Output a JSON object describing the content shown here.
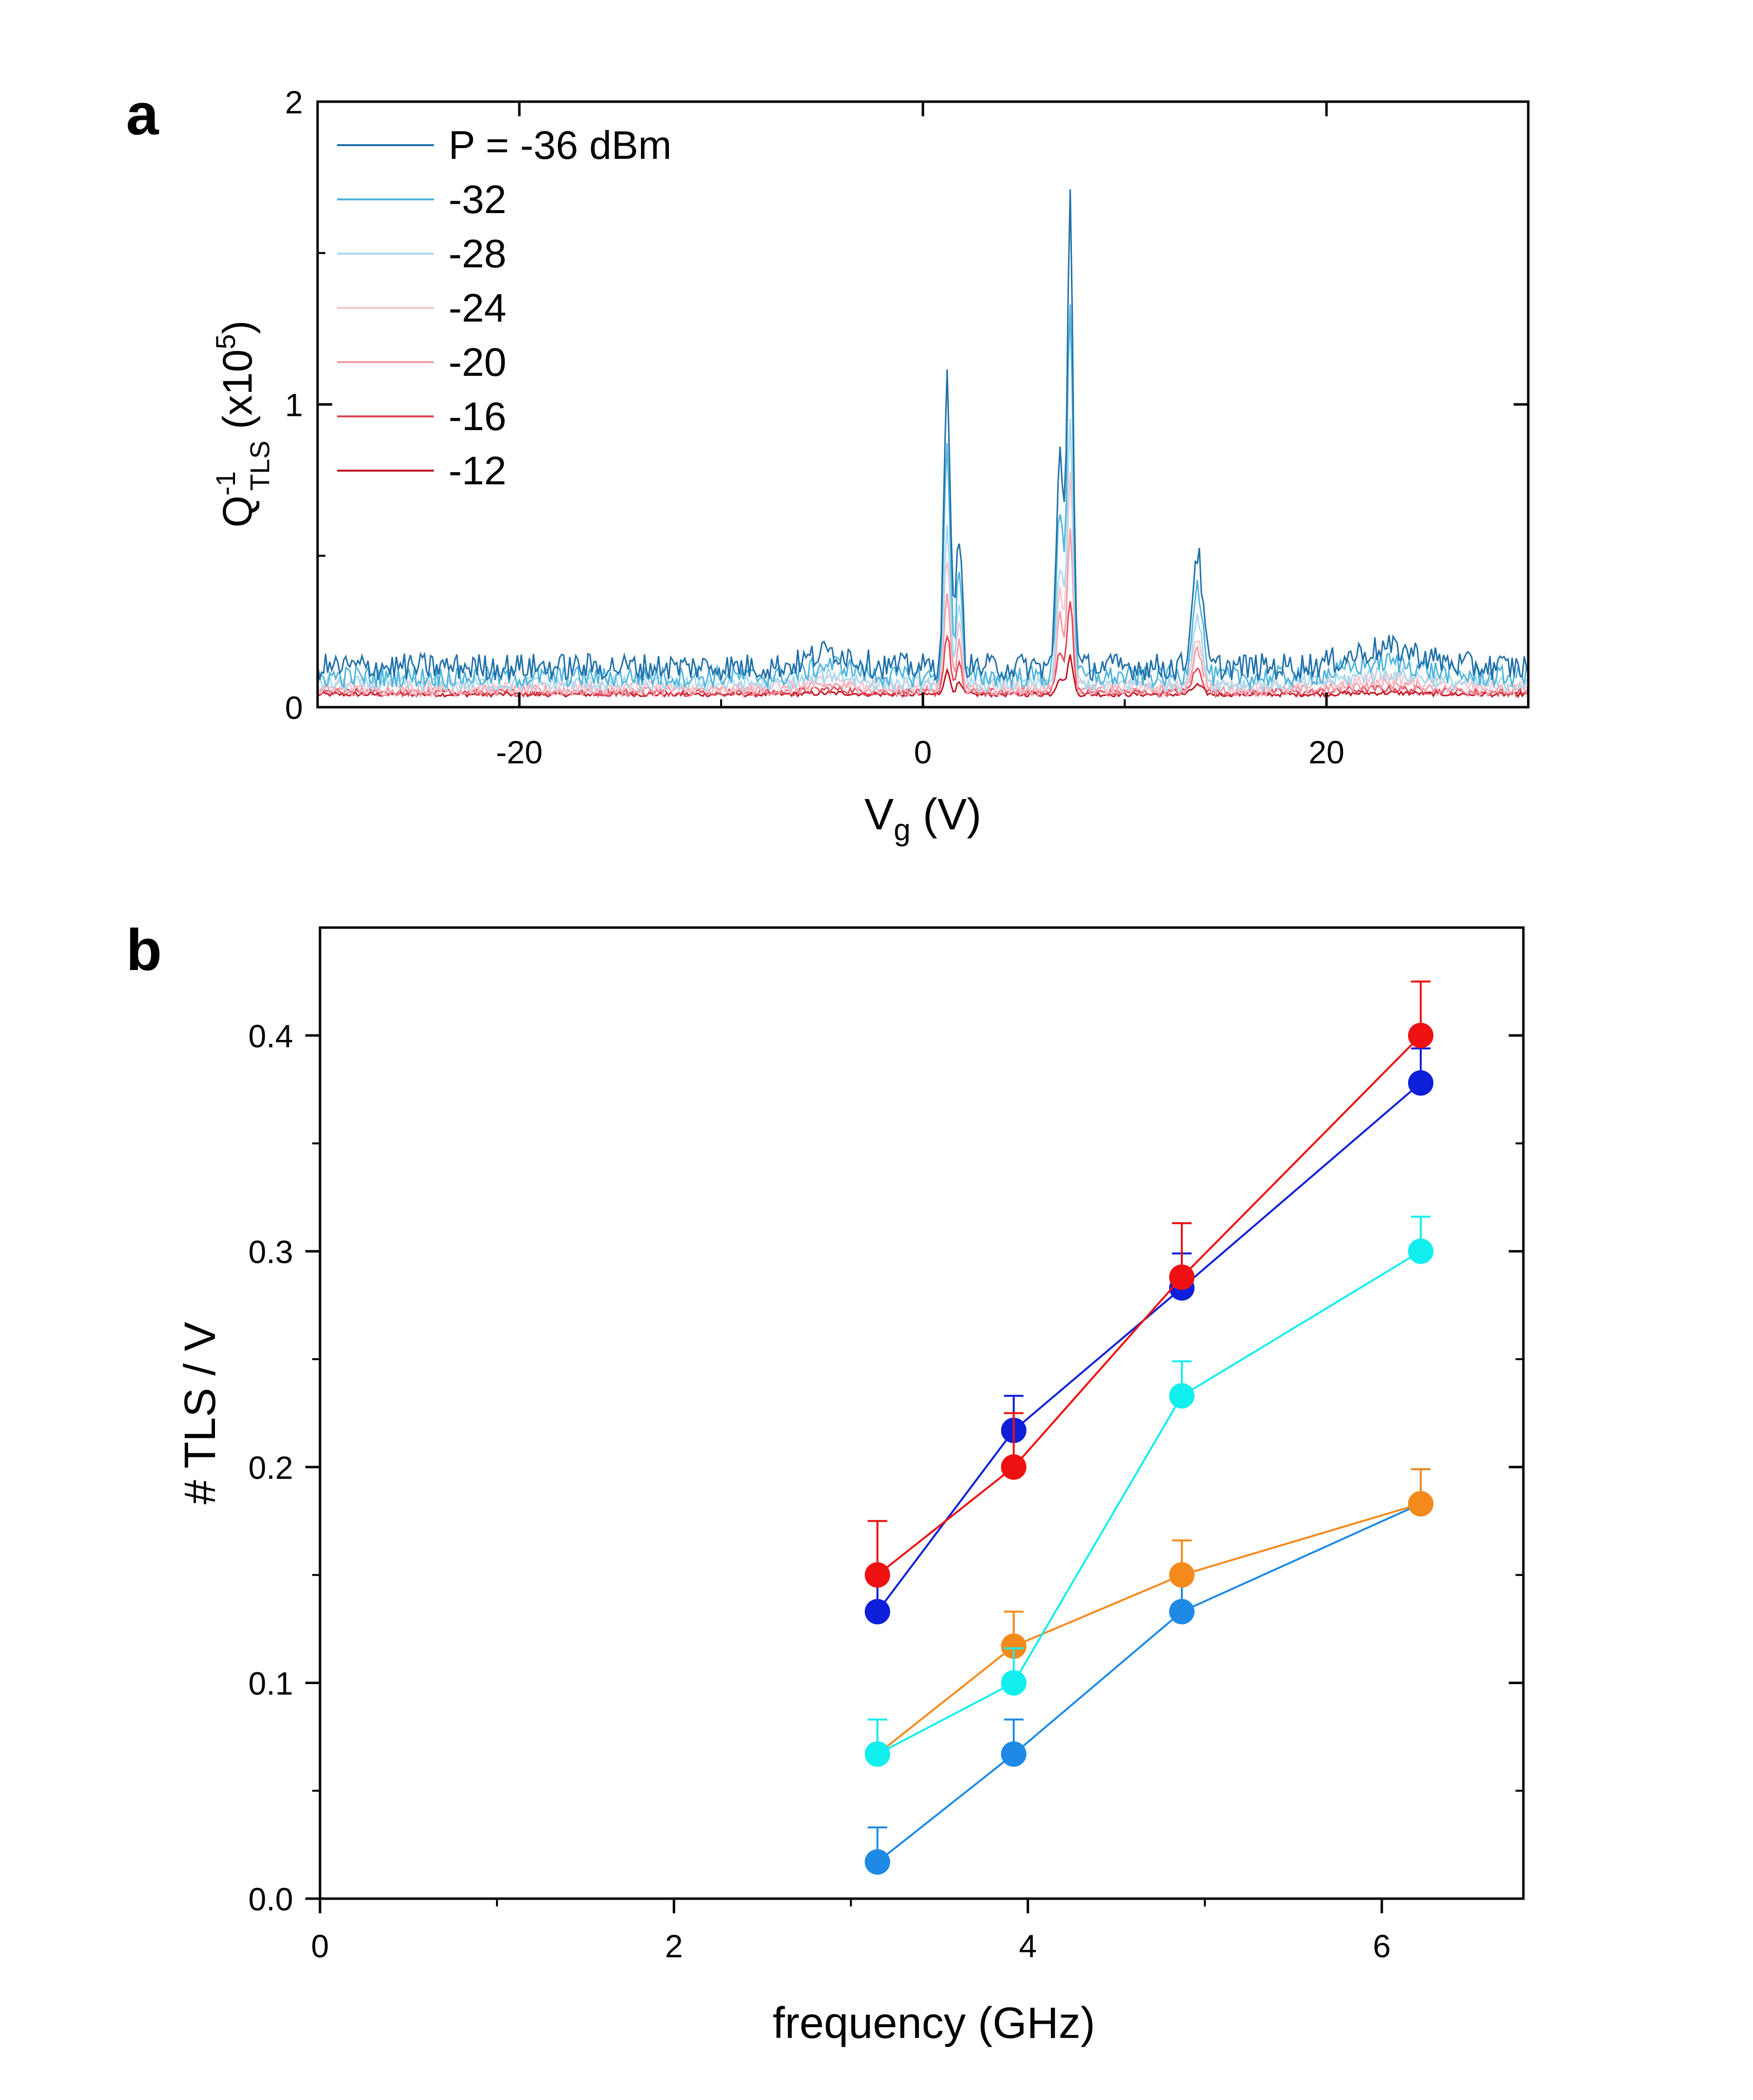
{
  "chart_data": [
    {
      "panel": "a",
      "type": "line",
      "xlabel": "V",
      "xlabel_sub": "g",
      "xlabel_unit": "(V)",
      "ylabel": {
        "base": "Q",
        "sup": "-1",
        "sub": "TLS",
        "scale": "(x10",
        "scale_sup": "5",
        "scale_close": ")"
      },
      "xlim": [
        -30,
        30
      ],
      "ylim": [
        0,
        2
      ],
      "xticks": [
        -20,
        0,
        20
      ],
      "xtick_labels": [
        "-20",
        "0",
        "20"
      ],
      "yticks": [
        0,
        1,
        2
      ],
      "ytick_labels": [
        "0",
        "1",
        "2"
      ],
      "legend_position": "top-left",
      "series": [
        {
          "name": "P = -36 dBm",
          "color": "#1f6fa8",
          "baseline": 0.12,
          "noise": 0.09,
          "peak_scale": 1.0
        },
        {
          "name": "-32",
          "color": "#4fb4dc",
          "baseline": 0.09,
          "noise": 0.07,
          "peak_scale": 0.8
        },
        {
          "name": "-28",
          "color": "#a6d9ee",
          "baseline": 0.07,
          "noise": 0.05,
          "peak_scale": 0.55
        },
        {
          "name": "-24",
          "color": "#f7c4cc",
          "baseline": 0.06,
          "noise": 0.045,
          "peak_scale": 0.45
        },
        {
          "name": "-20",
          "color": "#f29aa6",
          "baseline": 0.05,
          "noise": 0.035,
          "peak_scale": 0.35
        },
        {
          "name": "-16",
          "color": "#e04555",
          "baseline": 0.045,
          "noise": 0.025,
          "peak_scale": 0.2
        },
        {
          "name": "-12",
          "color": "#c0101c",
          "baseline": 0.04,
          "noise": 0.015,
          "peak_scale": 0.08
        }
      ],
      "peaks": [
        {
          "x": 1.2,
          "height": 0.95,
          "width": 0.22
        },
        {
          "x": 1.8,
          "height": 0.45,
          "width": 0.2
        },
        {
          "x": 6.8,
          "height": 0.7,
          "width": 0.25
        },
        {
          "x": 7.3,
          "height": 1.55,
          "width": 0.2
        },
        {
          "x": 13.6,
          "height": 0.38,
          "width": 0.35
        }
      ]
    },
    {
      "panel": "b",
      "type": "scatter",
      "xlabel": "frequency (GHz)",
      "ylabel": "# TLS / V",
      "xlim": [
        0,
        6.8
      ],
      "ylim": [
        0,
        0.45
      ],
      "xticks": [
        0,
        2,
        4,
        6
      ],
      "xtick_labels": [
        "0",
        "2",
        "4",
        "6"
      ],
      "yticks": [
        0.0,
        0.1,
        0.2,
        0.3,
        0.4
      ],
      "ytick_labels": [
        "0.0",
        "0.1",
        "0.2",
        "0.3",
        "0.4"
      ],
      "x": [
        3.15,
        3.92,
        4.87,
        6.22
      ],
      "series": [
        {
          "name": "red",
          "color": "#ee1111",
          "values": [
            0.15,
            0.2,
            0.288,
            0.4
          ],
          "errors": [
            0.025,
            0.025,
            0.025,
            0.025
          ]
        },
        {
          "name": "blue",
          "color": "#0d1fd8",
          "values": [
            0.133,
            0.217,
            0.283,
            0.378
          ],
          "errors": [
            0.016,
            0.016,
            0.016,
            0.016
          ]
        },
        {
          "name": "cyan",
          "color": "#11eeee",
          "values": [
            0.067,
            0.1,
            0.233,
            0.3
          ],
          "errors": [
            0.016,
            0.016,
            0.016,
            0.016
          ]
        },
        {
          "name": "orange",
          "color": "#f48a1c",
          "values": [
            0.067,
            0.117,
            0.15,
            0.183
          ],
          "errors": [
            0.016,
            0.016,
            0.016,
            0.016
          ]
        },
        {
          "name": "light-blue",
          "color": "#1e8ae6",
          "values": [
            0.017,
            0.067,
            0.133,
            0.183
          ],
          "errors": [
            0.016,
            0.016,
            0.016,
            0.016
          ]
        }
      ]
    }
  ],
  "panel_labels": {
    "a": "a",
    "b": "b"
  }
}
